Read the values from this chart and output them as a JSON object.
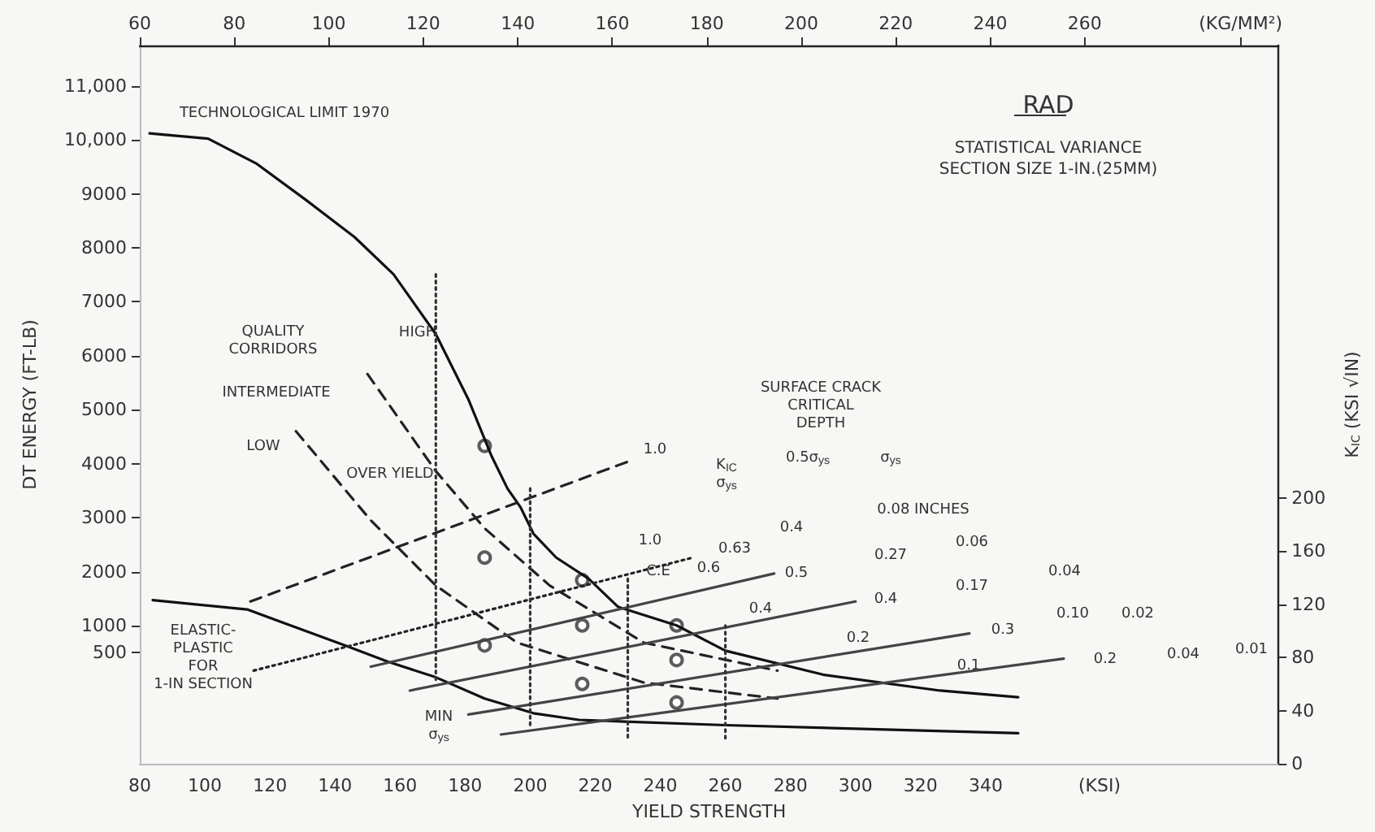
{
  "chart_data": {
    "type": "line",
    "title": "RAD",
    "subtitle": "STATISTICAL VARIANCE\nSECTION SIZE 1-IN.(25MM)",
    "xlabel": "YIELD STRENGTH",
    "ylabel": "DT ENERGY (FT-LB)",
    "y2label": "K$_{IC}$ (KSI √IN)",
    "xlim": [
      80,
      430
    ],
    "xticks": [
      80,
      100,
      120,
      140,
      160,
      180,
      200,
      220,
      240,
      260,
      280,
      300,
      320,
      340,
      {
        "value": 375,
        "label": "(KSI)"
      }
    ],
    "x2lim": [
      60,
      301
    ],
    "x2ticks": [
      60,
      80,
      100,
      120,
      140,
      160,
      180,
      200,
      220,
      240,
      260,
      {
        "value": 293,
        "label": "(KG/MM²)"
      }
    ],
    "ylim": [
      -1560,
      11750
    ],
    "yticks": [
      500,
      1000,
      2000,
      3000,
      4000,
      5000,
      6000,
      7000,
      8000,
      9000,
      {
        "value": 10000,
        "label": "10,000"
      },
      {
        "value": 11000,
        "label": "11,000"
      }
    ],
    "y2lim": [
      0,
      540
    ],
    "y2ticks": [
      0,
      40,
      80,
      120,
      160,
      200
    ],
    "grid": false,
    "marker": "none",
    "series": [
      {
        "line_style": "solid",
        "axis": "y2",
        "color": "#111111",
        "x": [
          83,
          101,
          116,
          131,
          146,
          158,
          171,
          181,
          188,
          193,
          197,
          201,
          208,
          218,
          227,
          245,
          260,
          290,
          326,
          350
        ],
        "values": [
          474,
          470,
          451,
          424,
          396,
          368,
          323,
          274,
          232,
          207,
          193,
          173,
          155,
          139,
          118,
          104,
          85,
          67,
          55,
          50
        ]
      },
      {
        "line_style": "solid",
        "axis": "y2",
        "color": "#111111",
        "x": [
          84,
          113,
          143,
          156,
          171,
          186,
          201,
          215,
          260,
          350
        ],
        "values": [
          123,
          116,
          89,
          77,
          65,
          49,
          38,
          33,
          29,
          23
        ]
      },
      {
        "line_style": "dashed",
        "axis": "y2",
        "color": "#222222",
        "x": [
          150,
          171,
          186,
          206,
          235,
          276
        ],
        "values": [
          293,
          220,
          177,
          134,
          91,
          70
        ]
      },
      {
        "line_style": "dashed",
        "axis": "y2",
        "color": "#222222",
        "x": [
          128,
          151,
          171,
          196,
          235,
          276
        ],
        "values": [
          250,
          183,
          134,
          91,
          61,
          49
        ]
      },
      {
        "line_style": "dashed",
        "axis": "y2",
        "color": "#222222",
        "x": [
          114,
          231
        ],
        "values": [
          122,
          228
        ]
      },
      {
        "line_style": "dotted",
        "axis": "y2",
        "color": "#222222",
        "x": [
          115,
          250
        ],
        "values": [
          70,
          155
        ]
      },
      {
        "line_style": "solid",
        "axis": "y2",
        "color": "#444444",
        "x": [
          151,
          275
        ],
        "values": [
          73,
          143
        ]
      },
      {
        "line_style": "solid",
        "axis": "y2",
        "color": "#444444",
        "x": [
          163,
          300
        ],
        "values": [
          55,
          122
        ]
      },
      {
        "line_style": "solid",
        "axis": "y2",
        "color": "#444444",
        "x": [
          181,
          335
        ],
        "values": [
          37,
          98
        ]
      },
      {
        "line_style": "solid",
        "axis": "y2",
        "color": "#444444",
        "x": [
          191,
          364
        ],
        "values": [
          22,
          79
        ]
      },
      {
        "line_style": "dotted",
        "axis": "y2",
        "color": "#333333",
        "x": [
          171,
          171
        ],
        "values": [
          368,
          63
        ]
      },
      {
        "line_style": "dotted",
        "axis": "y2",
        "color": "#333333",
        "x": [
          200,
          200
        ],
        "values": [
          207,
          28
        ]
      },
      {
        "line_style": "dotted",
        "axis": "y2",
        "color": "#333333",
        "x": [
          230,
          230
        ],
        "values": [
          139,
          18
        ]
      },
      {
        "line_style": "dotted",
        "axis": "y2",
        "color": "#333333",
        "x": [
          260,
          260
        ],
        "values": [
          104,
          18
        ]
      },
      {
        "type": "scatter",
        "marker": "circle",
        "axis": "y2",
        "color": "#333333",
        "x": [
          186,
          186,
          186,
          216,
          216,
          216,
          245,
          245,
          245
        ],
        "values": [
          239,
          155,
          89,
          138,
          104,
          60,
          104,
          78,
          46
        ]
      }
    ],
    "annotations": [
      "TECHNOLOGICAL LIMIT 1970",
      "QUALITY\nCORRIDORS",
      "HIGH",
      "INTERMEDIATE",
      "LOW",
      "OVER YIELD",
      "ELASTIC-\nPLASTIC\nFOR\n1-IN SECTION",
      "MIN\nσ$_{ys}$",
      "1.0",
      "K$_{IC}$\nσ$_{ys}$",
      "SURFACE CRACK\nCRITICAL\nDEPTH",
      "0.5σ$_{ys}$",
      "σ$_{ys}$",
      "1.0",
      "C.E",
      "0.63",
      "0.4",
      "0.08 INCHES",
      "0.6",
      "0.5",
      "0.27",
      "0.06",
      "0.4",
      "0.4",
      "0.17",
      "0.04",
      "0.2",
      "0.3",
      "0.10",
      "0.02",
      "0.1",
      "0.2",
      "0.04",
      "0.01"
    ]
  }
}
